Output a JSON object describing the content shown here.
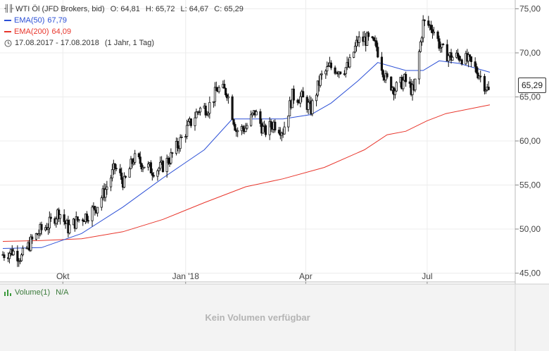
{
  "header": {
    "instrument": "WTI Öl (JFD Brokers, bid)",
    "open_label": "O:",
    "open": "64,81",
    "high_label": "H:",
    "high": "65,72",
    "low_label": "L:",
    "low": "64,67",
    "close_label": "C:",
    "close": "65,29"
  },
  "legend": {
    "ema50_label": "EMA(50)",
    "ema50_value": "67,79",
    "ema50_color": "#2b4fd6",
    "ema200_label": "EMA(200)",
    "ema200_value": "64,09",
    "ema200_color": "#e8352b",
    "range": "17.08.2017 - 17.08.2018",
    "interval": "(1 Jahr, 1 Tag)"
  },
  "last_price_badge": "65,29",
  "volume": {
    "label": "Volume(1)",
    "value": "N/A",
    "empty_message": "Kein Volumen verfügbar"
  },
  "chart_data": {
    "type": "candlestick",
    "x_range": [
      "2017-08-17",
      "2018-08-17"
    ],
    "x_ticks": [
      {
        "date": "2017-10-01",
        "label": "Okt"
      },
      {
        "date": "2018-01-01",
        "label": "Jan '18"
      },
      {
        "date": "2018-04-01",
        "label": "Apr"
      },
      {
        "date": "2018-07-01",
        "label": "Jul"
      }
    ],
    "y_ticks": [
      45,
      50,
      55,
      60,
      65,
      70,
      75
    ],
    "y_tick_labels": [
      "45,00",
      "50,00",
      "55,00",
      "60,00",
      "65,00",
      "70,00",
      "75,00"
    ],
    "y_range": [
      44.0,
      76.0
    ],
    "grid": true,
    "price_close": [
      [
        "2017-08-17",
        47.1
      ],
      [
        "2017-08-24",
        47.5
      ],
      [
        "2017-08-31",
        46.8
      ],
      [
        "2017-09-07",
        48.5
      ],
      [
        "2017-09-14",
        49.8
      ],
      [
        "2017-09-21",
        50.6
      ],
      [
        "2017-09-28",
        52.0
      ],
      [
        "2017-10-05",
        50.1
      ],
      [
        "2017-10-12",
        51.0
      ],
      [
        "2017-10-19",
        51.6
      ],
      [
        "2017-10-26",
        52.5
      ],
      [
        "2017-11-02",
        54.5
      ],
      [
        "2017-11-09",
        57.0
      ],
      [
        "2017-11-16",
        55.2
      ],
      [
        "2017-11-23",
        58.0
      ],
      [
        "2017-11-30",
        57.4
      ],
      [
        "2017-12-07",
        56.7
      ],
      [
        "2017-12-14",
        57.0
      ],
      [
        "2017-12-21",
        58.2
      ],
      [
        "2017-12-28",
        60.0
      ],
      [
        "2018-01-04",
        61.9
      ],
      [
        "2018-01-11",
        63.6
      ],
      [
        "2018-01-18",
        63.8
      ],
      [
        "2018-01-25",
        65.9
      ],
      [
        "2018-02-01",
        65.6
      ],
      [
        "2018-02-08",
        61.2
      ],
      [
        "2018-02-15",
        61.5
      ],
      [
        "2018-02-22",
        63.3
      ],
      [
        "2018-03-01",
        61.0
      ],
      [
        "2018-03-08",
        62.0
      ],
      [
        "2018-03-15",
        61.2
      ],
      [
        "2018-03-22",
        65.1
      ],
      [
        "2018-03-29",
        64.9
      ],
      [
        "2018-04-05",
        63.6
      ],
      [
        "2018-04-12",
        67.1
      ],
      [
        "2018-04-19",
        68.4
      ],
      [
        "2018-04-26",
        68.1
      ],
      [
        "2018-05-03",
        68.4
      ],
      [
        "2018-05-10",
        71.4
      ],
      [
        "2018-05-17",
        71.5
      ],
      [
        "2018-05-24",
        70.7
      ],
      [
        "2018-05-31",
        67.0
      ],
      [
        "2018-06-07",
        65.9
      ],
      [
        "2018-06-14",
        66.9
      ],
      [
        "2018-06-21",
        65.5
      ],
      [
        "2018-06-28",
        73.4
      ],
      [
        "2018-07-05",
        72.9
      ],
      [
        "2018-07-12",
        70.3
      ],
      [
        "2018-07-19",
        69.5
      ],
      [
        "2018-07-26",
        69.6
      ],
      [
        "2018-08-02",
        68.9
      ],
      [
        "2018-08-09",
        67.6
      ],
      [
        "2018-08-17",
        65.3
      ]
    ],
    "ema50": [
      [
        "2017-08-17",
        47.8
      ],
      [
        "2017-09-15",
        47.9
      ],
      [
        "2017-10-15",
        49.5
      ],
      [
        "2017-11-15",
        52.5
      ],
      [
        "2017-12-15",
        55.8
      ],
      [
        "2018-01-15",
        59.0
      ],
      [
        "2018-02-05",
        62.5
      ],
      [
        "2018-02-20",
        62.5
      ],
      [
        "2018-03-15",
        62.5
      ],
      [
        "2018-04-05",
        63.0
      ],
      [
        "2018-04-20",
        64.3
      ],
      [
        "2018-05-10",
        66.8
      ],
      [
        "2018-05-25",
        68.9
      ],
      [
        "2018-06-15",
        68.0
      ],
      [
        "2018-06-28",
        68.0
      ],
      [
        "2018-07-10",
        69.1
      ],
      [
        "2018-07-25",
        68.8
      ],
      [
        "2018-08-17",
        67.8
      ]
    ],
    "ema200": [
      [
        "2017-08-17",
        48.6
      ],
      [
        "2017-09-15",
        48.7
      ],
      [
        "2017-10-15",
        48.9
      ],
      [
        "2017-11-15",
        49.7
      ],
      [
        "2017-12-15",
        51.1
      ],
      [
        "2018-01-15",
        53.0
      ],
      [
        "2018-02-15",
        54.8
      ],
      [
        "2018-03-15",
        55.7
      ],
      [
        "2018-04-15",
        57.0
      ],
      [
        "2018-05-15",
        59.0
      ],
      [
        "2018-06-01",
        60.7
      ],
      [
        "2018-06-15",
        61.1
      ],
      [
        "2018-07-01",
        62.3
      ],
      [
        "2018-07-15",
        63.1
      ],
      [
        "2018-08-17",
        64.1
      ]
    ]
  }
}
